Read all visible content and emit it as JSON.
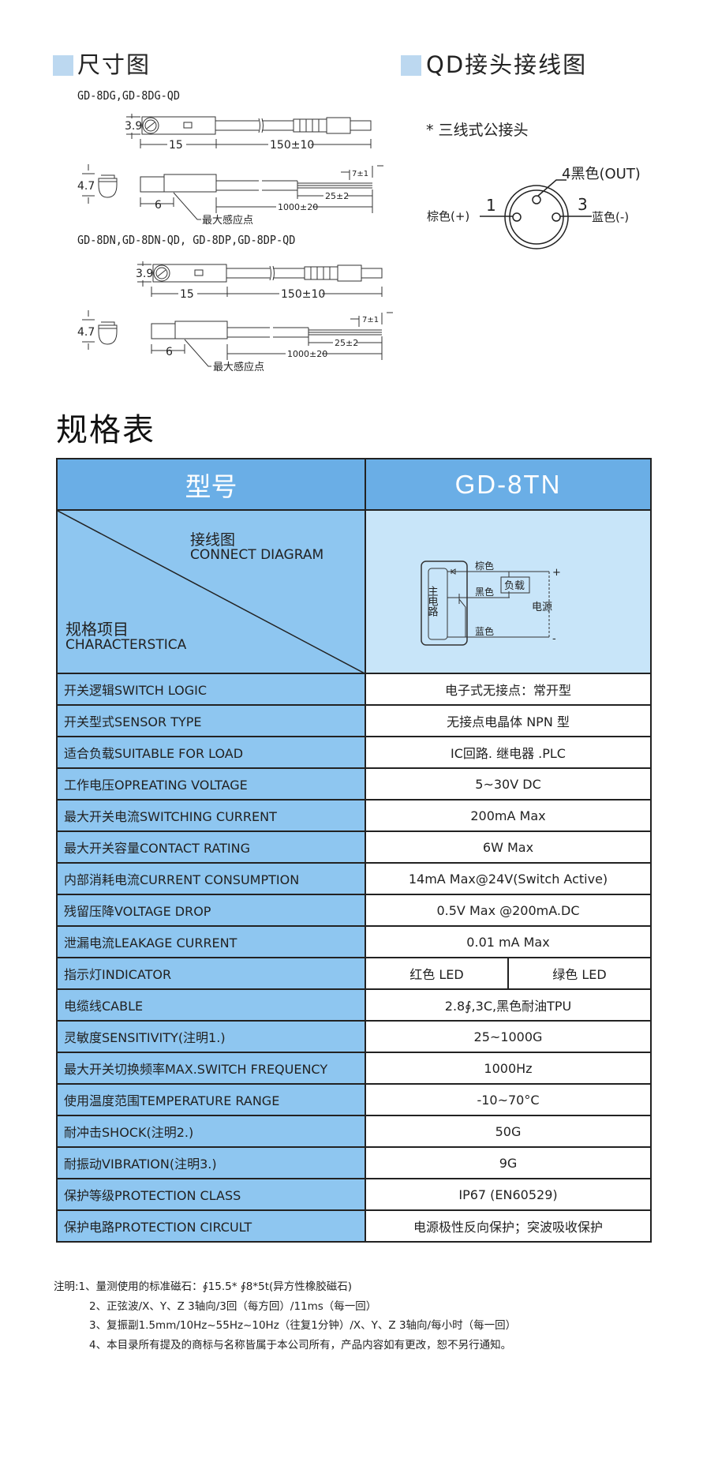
{
  "dimension": {
    "title": "尺寸图",
    "model_a": "GD-8DG,GD-8DG-QD",
    "model_b": "GD-8DN,GD-8DN-QD, GD-8DP,GD-8DP-QD",
    "dim_height_top": "3.9",
    "dim_height_side": "4.7",
    "dim_body": "15",
    "dim_cable_qd": "150±10",
    "dim_offset": "6",
    "dim_strip": "7±1",
    "dim_wire": "25±2",
    "dim_cable": "1000±20",
    "sensing_point": "最大感应点"
  },
  "qd": {
    "title": "QD接头接线图",
    "subtitle": "* 三线式公接头",
    "pin1_num": "1",
    "pin1_label": "棕色(+)",
    "pin3_num": "3",
    "pin3_label": "蓝色(-)",
    "pin4_label": "4黑色(OUT)"
  },
  "spec": {
    "title": "规格表",
    "header_label": "型号",
    "model": "GD-8TN",
    "diagram_label_cn": "接线图",
    "diagram_label_en": "CONNECT DIAGRAM",
    "items_label_cn": "规格项目",
    "items_label_en": "CHARACTERSTICA",
    "circuit": {
      "main_circuit": "主电路",
      "brown": "棕色",
      "black": "黑色",
      "blue": "蓝色",
      "load": "负载",
      "power": "电源",
      "plus": "+",
      "minus": "-"
    },
    "rows": [
      {
        "k": "开关逻辑SWITCH LOGIC",
        "v": "电子式无接点：常开型"
      },
      {
        "k": "开关型式SENSOR TYPE",
        "v": "无接点电晶体 NPN 型"
      },
      {
        "k": "适合负载SUITABLE FOR LOAD",
        "v": "IC回路. 继电器 .PLC"
      },
      {
        "k": "工作电压OPREATING VOLTAGE",
        "v": "5~30V DC"
      },
      {
        "k": "最大开关电流SWITCHING CURRENT",
        "v": "200mA Max"
      },
      {
        "k": "最大开关容量CONTACT RATING",
        "v": "6W Max"
      },
      {
        "k": "内部消耗电流CURRENT CONSUMPTION",
        "v": "14mA Max@24V(Switch Active)"
      },
      {
        "k": "残留压降VOLTAGE DROP",
        "v": "0.5V Max @200mA.DC"
      },
      {
        "k": "泄漏电流LEAKAGE CURRENT",
        "v": "0.01 mA Max"
      },
      {
        "k": "指示灯INDICATOR",
        "v1": "红色 LED",
        "v2": "绿色 LED"
      },
      {
        "k": "电缆线CABLE",
        "v": "2.8∮,3C,黑色耐油TPU"
      },
      {
        "k": "灵敏度SENSITIVITY(注明1.)",
        "v": "25~1000G"
      },
      {
        "k": "最大开关切换频率MAX.SWITCH FREQUENCY",
        "v": "1000Hz"
      },
      {
        "k": "使用温度范围TEMPERATURE RANGE",
        "v": "-10~70°C"
      },
      {
        "k": "耐冲击SHOCK(注明2.)",
        "v": "50G"
      },
      {
        "k": "耐振动VIBRATION(注明3.)",
        "v": "9G"
      },
      {
        "k": "保护等级PROTECTION CLASS",
        "v": "IP67 (EN60529)"
      },
      {
        "k": "保护电路PROTECTION CIRCULT",
        "v": "电源极性反向保护；突波吸收保护"
      }
    ]
  },
  "notes": [
    "注明:1、量测使用的标准磁石：∮15.5* ∮8*5t(异方性橡胶磁石)",
    "2、正弦波/X、Y、Z 3轴向/3回（每方回）/11ms（每一回）",
    "3、复振副1.5mm/10Hz~55Hz~10Hz（往复1分钟）/X、Y、Z 3轴向/每小时（每一回）",
    "4、本目录所有提及的商标与名称皆属于本公司所有，产品内容如有更改，恕不另行通知。"
  ],
  "colors": {
    "header": "#6aaee6",
    "label_col": "#8ec6f0",
    "diagram_bg": "#c8e5f9",
    "section_square": "#bcd8f0"
  }
}
